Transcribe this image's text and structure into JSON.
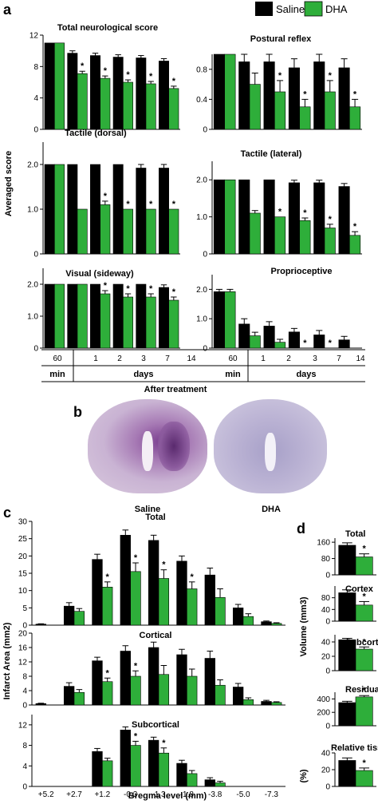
{
  "colors": {
    "saline": "#000000",
    "dha": "#2eae3a"
  },
  "legend": {
    "saline": "Saline",
    "dha": "DHA"
  },
  "panel_labels": {
    "a": "a",
    "b": "b",
    "c": "c",
    "d": "d"
  },
  "a": {
    "ylabel": "Averaged score",
    "xlabel": "After treatment",
    "categories": [
      "60",
      "1",
      "2",
      "3",
      "7",
      "14"
    ],
    "unit_min": "min",
    "unit_days": "days"
  },
  "b": {
    "left_label": "Saline",
    "right_label": "DHA"
  },
  "c": {
    "ylabel": "Infarct Area (mm2)",
    "xlabel": "Bregma level (mm)",
    "categories": [
      "+5.2",
      "+2.7",
      "+1.2",
      "-0.3",
      "-1.3",
      "-1.8",
      "-3.8",
      "-5.0",
      "-7.3"
    ]
  },
  "d": {
    "ylabel": "Volume (mm3)",
    "ylabel2": "(%)"
  },
  "chart_data": [
    {
      "type": "bar",
      "title": "Total neurological score",
      "categories": [
        "60",
        "1",
        "2",
        "3",
        "7",
        "14"
      ],
      "ylim": [
        0,
        12
      ],
      "yticks": [
        0,
        4,
        8,
        12
      ],
      "yticklabels": [
        "0",
        "4",
        "8",
        "12"
      ],
      "series": [
        {
          "name": "Saline",
          "values": [
            11,
            9.7,
            9.4,
            9.2,
            9.1,
            8.7
          ],
          "err": [
            0,
            0.3,
            0.3,
            0.3,
            0.3,
            0.3
          ]
        },
        {
          "name": "DHA",
          "values": [
            11,
            7.1,
            6.5,
            6.0,
            5.8,
            5.2
          ],
          "err": [
            0,
            0.3,
            0.3,
            0.3,
            0.3,
            0.3
          ]
        }
      ],
      "stars": [
        "",
        "*",
        "*",
        "*",
        "*",
        "*"
      ]
    },
    {
      "type": "bar",
      "title": "Postural reflex",
      "categories": [
        "60",
        "1",
        "2",
        "3",
        "7",
        "14"
      ],
      "ylim": [
        0,
        1
      ],
      "yticks": [
        0,
        0.4,
        0.8
      ],
      "yticklabels": [
        "0",
        "0.4",
        "0.8"
      ],
      "series": [
        {
          "name": "Saline",
          "values": [
            1,
            0.9,
            0.9,
            0.82,
            0.9,
            0.82
          ],
          "err": [
            0,
            0.1,
            0.1,
            0.12,
            0.1,
            0.12
          ]
        },
        {
          "name": "DHA",
          "values": [
            1,
            0.6,
            0.5,
            0.3,
            0.5,
            0.3
          ],
          "err": [
            0,
            0.15,
            0.15,
            0.1,
            0.15,
            0.1
          ]
        }
      ],
      "stars": [
        "",
        "",
        "*",
        "*",
        "*",
        "*"
      ]
    },
    {
      "type": "bar",
      "title": "Tactile (dorsal)",
      "categories": [
        "60",
        "1",
        "2",
        "3",
        "7",
        "14"
      ],
      "ylim": [
        0,
        2.5
      ],
      "yticks": [
        0,
        1,
        2
      ],
      "yticklabels": [
        "0",
        "1.0",
        "2.0"
      ],
      "series": [
        {
          "name": "Saline",
          "values": [
            2,
            2,
            2,
            2,
            1.92,
            1.92
          ],
          "err": [
            0,
            0,
            0,
            0,
            0.08,
            0.08
          ]
        },
        {
          "name": "DHA",
          "values": [
            2,
            1.0,
            1.1,
            1.0,
            1.0,
            1.0
          ],
          "err": [
            0,
            0,
            0.08,
            0,
            0,
            0
          ]
        }
      ],
      "stars": [
        "",
        "",
        "*",
        "*",
        "*",
        "*"
      ]
    },
    {
      "type": "bar",
      "title": "Tactile (lateral)",
      "categories": [
        "60",
        "1",
        "2",
        "3",
        "7",
        "14"
      ],
      "ylim": [
        0,
        2.5
      ],
      "yticks": [
        0,
        1,
        2
      ],
      "yticklabels": [
        "0",
        "1.0",
        "2.0"
      ],
      "series": [
        {
          "name": "Saline",
          "values": [
            2,
            2,
            2,
            1.92,
            1.92,
            1.82
          ],
          "err": [
            0,
            0,
            0,
            0.07,
            0.07,
            0.08
          ]
        },
        {
          "name": "DHA",
          "values": [
            2,
            1.1,
            1.0,
            0.9,
            0.7,
            0.5
          ],
          "err": [
            0,
            0.07,
            0,
            0.07,
            0.1,
            0.1
          ]
        }
      ],
      "stars": [
        "",
        "",
        "*",
        "*",
        "*",
        "*"
      ]
    },
    {
      "type": "bar",
      "title": "Visual (sideway)",
      "categories": [
        "60",
        "1",
        "2",
        "3",
        "7",
        "14"
      ],
      "ylim": [
        0,
        2.5
      ],
      "yticks": [
        0,
        1,
        2
      ],
      "yticklabels": [
        "0",
        "1.0",
        "2.0"
      ],
      "series": [
        {
          "name": "Saline",
          "values": [
            2,
            2,
            2,
            2,
            2,
            1.9
          ],
          "err": [
            0,
            0,
            0,
            0,
            0,
            0.08
          ]
        },
        {
          "name": "DHA",
          "values": [
            2,
            2,
            1.7,
            1.6,
            1.6,
            1.5
          ],
          "err": [
            0,
            0,
            0.1,
            0.1,
            0.1,
            0.1
          ]
        }
      ],
      "stars": [
        "",
        "",
        "*",
        "*",
        "*",
        "*"
      ]
    },
    {
      "type": "bar",
      "title": "Proprioceptive",
      "categories": [
        "60",
        "1",
        "2",
        "3",
        "7",
        "14"
      ],
      "ylim": [
        0,
        2.5
      ],
      "yticks": [
        0,
        1,
        2
      ],
      "yticklabels": [
        "0",
        "1.0",
        "2.0"
      ],
      "series": [
        {
          "name": "Saline",
          "values": [
            1.92,
            0.82,
            0.75,
            0.55,
            0.45,
            0.28
          ],
          "err": [
            0.08,
            0.18,
            0.15,
            0.12,
            0.15,
            0.12
          ]
        },
        {
          "name": "DHA",
          "values": [
            1.92,
            0.42,
            0.2,
            0,
            0,
            0
          ],
          "err": [
            0.08,
            0.12,
            0.1,
            0,
            0,
            0
          ]
        }
      ],
      "stars": [
        "",
        "",
        "",
        "*",
        "*",
        ""
      ]
    },
    {
      "type": "bar",
      "title": "Total",
      "categories": [
        "+5.2",
        "+2.7",
        "+1.2",
        "-0.3",
        "-1.3",
        "-1.8",
        "-3.8",
        "-5.0",
        "-7.3"
      ],
      "ylim": [
        0,
        30
      ],
      "yticks": [
        0,
        5,
        10,
        15,
        20,
        25,
        30
      ],
      "yticklabels": [
        "0",
        "5",
        "10",
        "15",
        "20",
        "25",
        "30"
      ],
      "series": [
        {
          "name": "Saline",
          "values": [
            0.3,
            5.5,
            19,
            26,
            24.5,
            18.5,
            14.5,
            5,
            1
          ],
          "err": [
            0.1,
            1,
            1.5,
            1.5,
            1.5,
            1.5,
            2,
            1,
            0.2
          ]
        },
        {
          "name": "DHA",
          "values": [
            0,
            4,
            11,
            15.5,
            13.5,
            10.5,
            8,
            2.5,
            0.5
          ],
          "err": [
            0,
            0.8,
            1.5,
            2.5,
            2.5,
            2,
            2.5,
            0.8,
            0.2
          ]
        }
      ],
      "stars": [
        "",
        "",
        "*",
        "*",
        "*",
        "*",
        "",
        "",
        ""
      ]
    },
    {
      "type": "bar",
      "title": "Cortical",
      "categories": [
        "+5.2",
        "+2.7",
        "+1.2",
        "-0.3",
        "-1.3",
        "-1.8",
        "-3.8",
        "-5.0",
        "-7.3"
      ],
      "ylim": [
        0,
        20
      ],
      "yticks": [
        0,
        4,
        8,
        12,
        16,
        20
      ],
      "yticklabels": [
        "0",
        "4",
        "8",
        "12",
        "16",
        "20"
      ],
      "series": [
        {
          "name": "Saline",
          "values": [
            0.4,
            5.2,
            12.3,
            15,
            16,
            14,
            13,
            5,
            1
          ],
          "err": [
            0.1,
            1,
            1,
            1.5,
            1.5,
            1.5,
            2,
            1,
            0.3
          ]
        },
        {
          "name": "DHA",
          "values": [
            0,
            3.5,
            6.5,
            8,
            8.5,
            8,
            5.5,
            1.5,
            0.7
          ],
          "err": [
            0,
            0.8,
            1,
            1.5,
            2.5,
            2,
            1.5,
            0.5,
            0.2
          ]
        }
      ],
      "stars": [
        "",
        "",
        "*",
        "*",
        "",
        "",
        "",
        "",
        ""
      ]
    },
    {
      "type": "bar",
      "title": "Subcortical",
      "categories": [
        "+5.2",
        "+2.7",
        "+1.2",
        "-0.3",
        "-1.3",
        "-1.8",
        "-3.8",
        "-5.0",
        "-7.3"
      ],
      "ylim": [
        0,
        14
      ],
      "yticks": [
        0,
        4,
        8,
        12
      ],
      "yticklabels": [
        "0",
        "4",
        "8",
        "12"
      ],
      "series": [
        {
          "name": "Saline",
          "values": [
            0,
            0,
            6.8,
            11,
            9,
            4.5,
            1.3,
            0,
            0
          ],
          "err": [
            0,
            0,
            0.6,
            0.6,
            0.6,
            0.6,
            0.4,
            0,
            0
          ]
        },
        {
          "name": "DHA",
          "values": [
            0,
            0,
            5,
            8,
            6.5,
            2.5,
            0.7,
            0,
            0
          ],
          "err": [
            0,
            0,
            0.5,
            0.8,
            1,
            0.6,
            0.3,
            0,
            0
          ]
        }
      ],
      "stars": [
        "",
        "",
        "",
        "*",
        "*",
        "",
        "",
        "",
        ""
      ]
    },
    {
      "type": "bar",
      "title": "Total",
      "categories": [
        ""
      ],
      "ylim": [
        0,
        180
      ],
      "yticks": [
        0,
        80,
        160
      ],
      "yticklabels": [
        "0",
        "80",
        "160"
      ],
      "series": [
        {
          "name": "Saline",
          "values": [
            145
          ],
          "err": [
            12
          ]
        },
        {
          "name": "DHA",
          "values": [
            88
          ],
          "err": [
            15
          ]
        }
      ],
      "stars": [
        "*"
      ]
    },
    {
      "type": "bar",
      "title": "Cortex",
      "categories": [
        ""
      ],
      "ylim": [
        0,
        120
      ],
      "yticks": [
        0,
        40,
        80
      ],
      "yticklabels": [
        "0",
        "40",
        "80"
      ],
      "series": [
        {
          "name": "Saline",
          "values": [
            97
          ],
          "err": [
            10
          ]
        },
        {
          "name": "DHA",
          "values": [
            55
          ],
          "err": [
            12
          ]
        }
      ],
      "stars": [
        "*"
      ]
    },
    {
      "type": "bar",
      "title": "Subcortex",
      "categories": [
        ""
      ],
      "ylim": [
        0,
        50
      ],
      "yticks": [
        0,
        20,
        40
      ],
      "yticklabels": [
        "0",
        "20",
        "40"
      ],
      "series": [
        {
          "name": "Saline",
          "values": [
            43
          ],
          "err": [
            2
          ]
        },
        {
          "name": "DHA",
          "values": [
            30
          ],
          "err": [
            3
          ]
        }
      ],
      "stars": [
        "*"
      ]
    },
    {
      "type": "bar",
      "title": "Residual tissue",
      "categories": [
        ""
      ],
      "ylim": [
        0,
        500
      ],
      "yticks": [
        0,
        200,
        400
      ],
      "yticklabels": [
        "0",
        "200",
        "400"
      ],
      "series": [
        {
          "name": "Saline",
          "values": [
            345
          ],
          "err": [
            20
          ]
        },
        {
          "name": "DHA",
          "values": [
            430
          ],
          "err": [
            20
          ]
        }
      ],
      "stars": [
        "*"
      ]
    },
    {
      "type": "bar",
      "title": "Relative tissue loss",
      "categories": [
        ""
      ],
      "ylim": [
        0,
        40
      ],
      "yticks": [
        0,
        20,
        40
      ],
      "yticklabels": [
        "0",
        "20",
        "40"
      ],
      "series": [
        {
          "name": "Saline",
          "values": [
            31
          ],
          "err": [
            3
          ]
        },
        {
          "name": "DHA",
          "values": [
            19
          ],
          "err": [
            3
          ]
        }
      ],
      "stars": [
        "*"
      ]
    }
  ]
}
